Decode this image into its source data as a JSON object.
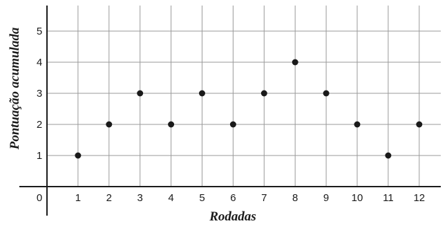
{
  "chart_data": {
    "type": "scatter",
    "title": "",
    "xlabel": "Rodadas",
    "ylabel": "Pontuação acumulada",
    "x": [
      1,
      2,
      3,
      4,
      5,
      6,
      7,
      8,
      9,
      10,
      11,
      12
    ],
    "y": [
      1,
      2,
      3,
      2,
      3,
      2,
      3,
      4,
      3,
      2,
      1,
      2
    ],
    "xlim": [
      0,
      12
    ],
    "ylim": [
      0,
      5
    ],
    "x_ticks": [
      "0",
      "1",
      "2",
      "3",
      "4",
      "5",
      "6",
      "7",
      "8",
      "9",
      "10",
      "11",
      "12"
    ],
    "y_ticks": [
      "1",
      "2",
      "3",
      "4",
      "5"
    ],
    "grid": true,
    "legend": "none",
    "colors": {
      "marker": "#1a1a1a",
      "grid": "#9a9a9a",
      "axis": "#1a1a1a"
    }
  }
}
